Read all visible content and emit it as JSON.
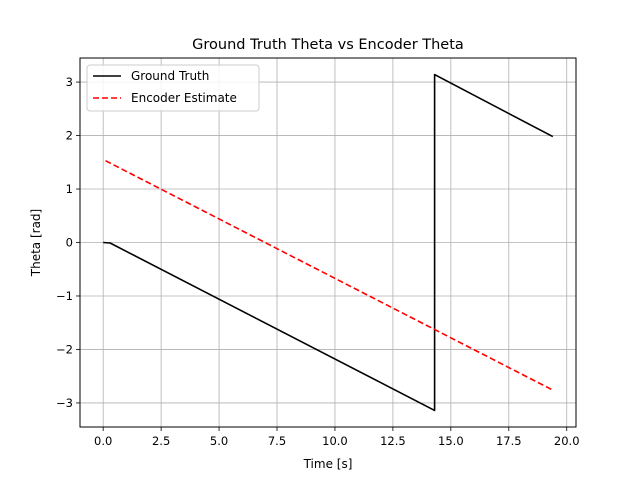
{
  "chart_data": {
    "type": "line",
    "title": "Ground Truth Theta vs Encoder Theta",
    "xlabel": "Time [s]",
    "ylabel": "Theta [rad]",
    "xlim": [
      -1.0,
      20.4
    ],
    "ylim": [
      -3.45,
      3.45
    ],
    "grid": true,
    "legend_position": "top-left",
    "x_ticks": [
      0.0,
      2.5,
      5.0,
      7.5,
      10.0,
      12.5,
      15.0,
      17.5,
      20.0
    ],
    "x_tick_labels": [
      "0.0",
      "2.5",
      "5.0",
      "7.5",
      "10.0",
      "12.5",
      "15.0",
      "17.5",
      "20.0"
    ],
    "y_ticks": [
      -3,
      -2,
      -1,
      0,
      1,
      2,
      3
    ],
    "y_tick_labels": [
      "−3",
      "−2",
      "−1",
      "0",
      "1",
      "2",
      "3"
    ],
    "series": [
      {
        "name": "Ground Truth",
        "color": "#000000",
        "style": "solid",
        "x": [
          0.0,
          0.3,
          14.3,
          14.3,
          19.4
        ],
        "y": [
          0.0,
          -0.01,
          -3.14,
          3.14,
          1.98
        ]
      },
      {
        "name": "Encoder Estimate",
        "color": "#ff0000",
        "style": "dashed",
        "x": [
          0.1,
          19.4
        ],
        "y": [
          1.53,
          -2.76
        ]
      }
    ]
  }
}
